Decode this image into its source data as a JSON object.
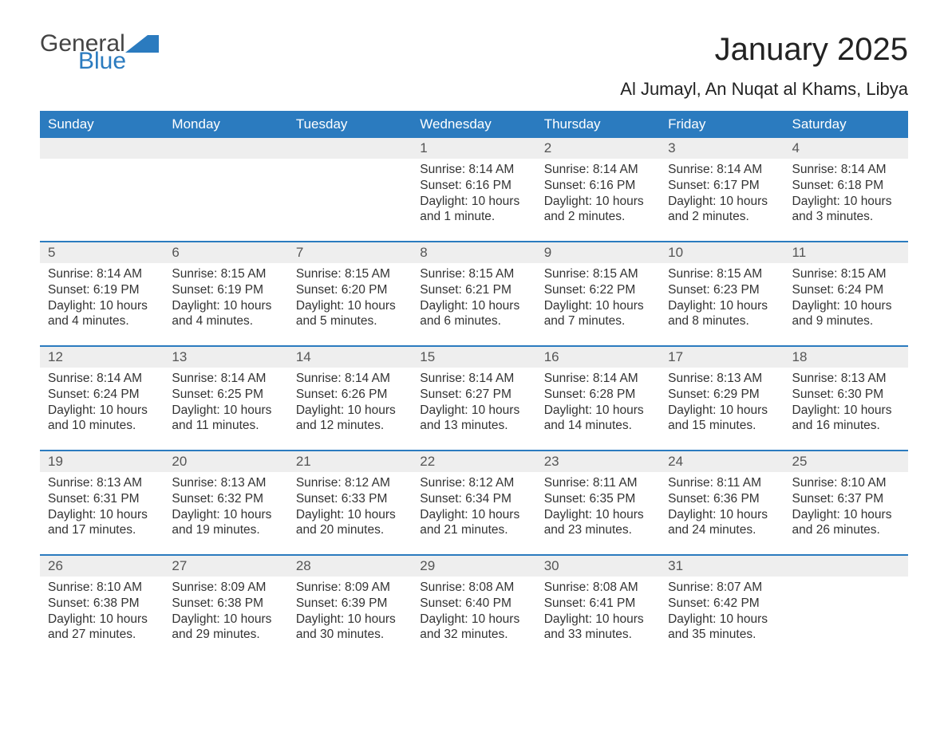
{
  "logo": {
    "part1": "General",
    "part2": "Blue",
    "color1": "#444444",
    "color2": "#2b7bbf",
    "shape_color": "#2b7bbf"
  },
  "title": "January 2025",
  "location": "Al Jumayl, An Nuqat al Khams, Libya",
  "colors": {
    "header_bg": "#2b7bbf",
    "header_text": "#ffffff",
    "daynum_bg": "#eeeeee",
    "daynum_text": "#555555",
    "body_text": "#333333",
    "row_divider": "#2b7bbf",
    "page_bg": "#ffffff"
  },
  "fonts": {
    "title_size_pt": 30,
    "location_size_pt": 17,
    "header_size_pt": 13,
    "daynum_size_pt": 13,
    "body_size_pt": 11.5
  },
  "weekdays": [
    "Sunday",
    "Monday",
    "Tuesday",
    "Wednesday",
    "Thursday",
    "Friday",
    "Saturday"
  ],
  "weeks": [
    [
      null,
      null,
      null,
      {
        "day": "1",
        "sunrise": "Sunrise: 8:14 AM",
        "sunset": "Sunset: 6:16 PM",
        "daylight": "Daylight: 10 hours and 1 minute."
      },
      {
        "day": "2",
        "sunrise": "Sunrise: 8:14 AM",
        "sunset": "Sunset: 6:16 PM",
        "daylight": "Daylight: 10 hours and 2 minutes."
      },
      {
        "day": "3",
        "sunrise": "Sunrise: 8:14 AM",
        "sunset": "Sunset: 6:17 PM",
        "daylight": "Daylight: 10 hours and 2 minutes."
      },
      {
        "day": "4",
        "sunrise": "Sunrise: 8:14 AM",
        "sunset": "Sunset: 6:18 PM",
        "daylight": "Daylight: 10 hours and 3 minutes."
      }
    ],
    [
      {
        "day": "5",
        "sunrise": "Sunrise: 8:14 AM",
        "sunset": "Sunset: 6:19 PM",
        "daylight": "Daylight: 10 hours and 4 minutes."
      },
      {
        "day": "6",
        "sunrise": "Sunrise: 8:15 AM",
        "sunset": "Sunset: 6:19 PM",
        "daylight": "Daylight: 10 hours and 4 minutes."
      },
      {
        "day": "7",
        "sunrise": "Sunrise: 8:15 AM",
        "sunset": "Sunset: 6:20 PM",
        "daylight": "Daylight: 10 hours and 5 minutes."
      },
      {
        "day": "8",
        "sunrise": "Sunrise: 8:15 AM",
        "sunset": "Sunset: 6:21 PM",
        "daylight": "Daylight: 10 hours and 6 minutes."
      },
      {
        "day": "9",
        "sunrise": "Sunrise: 8:15 AM",
        "sunset": "Sunset: 6:22 PM",
        "daylight": "Daylight: 10 hours and 7 minutes."
      },
      {
        "day": "10",
        "sunrise": "Sunrise: 8:15 AM",
        "sunset": "Sunset: 6:23 PM",
        "daylight": "Daylight: 10 hours and 8 minutes."
      },
      {
        "day": "11",
        "sunrise": "Sunrise: 8:15 AM",
        "sunset": "Sunset: 6:24 PM",
        "daylight": "Daylight: 10 hours and 9 minutes."
      }
    ],
    [
      {
        "day": "12",
        "sunrise": "Sunrise: 8:14 AM",
        "sunset": "Sunset: 6:24 PM",
        "daylight": "Daylight: 10 hours and 10 minutes."
      },
      {
        "day": "13",
        "sunrise": "Sunrise: 8:14 AM",
        "sunset": "Sunset: 6:25 PM",
        "daylight": "Daylight: 10 hours and 11 minutes."
      },
      {
        "day": "14",
        "sunrise": "Sunrise: 8:14 AM",
        "sunset": "Sunset: 6:26 PM",
        "daylight": "Daylight: 10 hours and 12 minutes."
      },
      {
        "day": "15",
        "sunrise": "Sunrise: 8:14 AM",
        "sunset": "Sunset: 6:27 PM",
        "daylight": "Daylight: 10 hours and 13 minutes."
      },
      {
        "day": "16",
        "sunrise": "Sunrise: 8:14 AM",
        "sunset": "Sunset: 6:28 PM",
        "daylight": "Daylight: 10 hours and 14 minutes."
      },
      {
        "day": "17",
        "sunrise": "Sunrise: 8:13 AM",
        "sunset": "Sunset: 6:29 PM",
        "daylight": "Daylight: 10 hours and 15 minutes."
      },
      {
        "day": "18",
        "sunrise": "Sunrise: 8:13 AM",
        "sunset": "Sunset: 6:30 PM",
        "daylight": "Daylight: 10 hours and 16 minutes."
      }
    ],
    [
      {
        "day": "19",
        "sunrise": "Sunrise: 8:13 AM",
        "sunset": "Sunset: 6:31 PM",
        "daylight": "Daylight: 10 hours and 17 minutes."
      },
      {
        "day": "20",
        "sunrise": "Sunrise: 8:13 AM",
        "sunset": "Sunset: 6:32 PM",
        "daylight": "Daylight: 10 hours and 19 minutes."
      },
      {
        "day": "21",
        "sunrise": "Sunrise: 8:12 AM",
        "sunset": "Sunset: 6:33 PM",
        "daylight": "Daylight: 10 hours and 20 minutes."
      },
      {
        "day": "22",
        "sunrise": "Sunrise: 8:12 AM",
        "sunset": "Sunset: 6:34 PM",
        "daylight": "Daylight: 10 hours and 21 minutes."
      },
      {
        "day": "23",
        "sunrise": "Sunrise: 8:11 AM",
        "sunset": "Sunset: 6:35 PM",
        "daylight": "Daylight: 10 hours and 23 minutes."
      },
      {
        "day": "24",
        "sunrise": "Sunrise: 8:11 AM",
        "sunset": "Sunset: 6:36 PM",
        "daylight": "Daylight: 10 hours and 24 minutes."
      },
      {
        "day": "25",
        "sunrise": "Sunrise: 8:10 AM",
        "sunset": "Sunset: 6:37 PM",
        "daylight": "Daylight: 10 hours and 26 minutes."
      }
    ],
    [
      {
        "day": "26",
        "sunrise": "Sunrise: 8:10 AM",
        "sunset": "Sunset: 6:38 PM",
        "daylight": "Daylight: 10 hours and 27 minutes."
      },
      {
        "day": "27",
        "sunrise": "Sunrise: 8:09 AM",
        "sunset": "Sunset: 6:38 PM",
        "daylight": "Daylight: 10 hours and 29 minutes."
      },
      {
        "day": "28",
        "sunrise": "Sunrise: 8:09 AM",
        "sunset": "Sunset: 6:39 PM",
        "daylight": "Daylight: 10 hours and 30 minutes."
      },
      {
        "day": "29",
        "sunrise": "Sunrise: 8:08 AM",
        "sunset": "Sunset: 6:40 PM",
        "daylight": "Daylight: 10 hours and 32 minutes."
      },
      {
        "day": "30",
        "sunrise": "Sunrise: 8:08 AM",
        "sunset": "Sunset: 6:41 PM",
        "daylight": "Daylight: 10 hours and 33 minutes."
      },
      {
        "day": "31",
        "sunrise": "Sunrise: 8:07 AM",
        "sunset": "Sunset: 6:42 PM",
        "daylight": "Daylight: 10 hours and 35 minutes."
      },
      null
    ]
  ]
}
